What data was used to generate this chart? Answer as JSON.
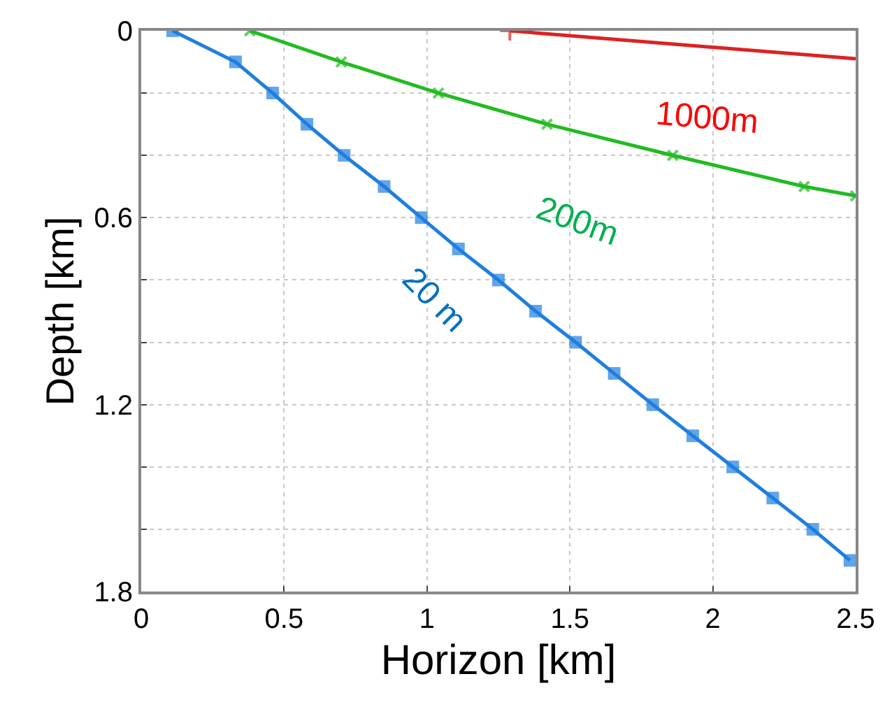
{
  "chart_data": {
    "type": "line",
    "xlabel": "Horizon [km]",
    "ylabel": "Depth [km]",
    "xlim": [
      0,
      2.5
    ],
    "ylim": [
      1.8,
      0
    ],
    "xticks": [
      0,
      0.5,
      1,
      1.5,
      2,
      2.5
    ],
    "yticks": [
      0,
      {
        "value": 0.2,
        "label": null
      },
      {
        "value": 0.4,
        "label": null
      },
      0.6,
      {
        "value": 0.8,
        "label": null
      },
      {
        "value": 1.0,
        "label": null
      },
      1.2,
      {
        "value": 1.4,
        "label": null
      },
      {
        "value": 1.6,
        "label": null
      },
      1.8
    ],
    "grid": true,
    "line_style": "solid",
    "series": [
      {
        "color": "#1f7fe0",
        "marker": "square",
        "x": [
          0.11,
          0.33,
          0.46,
          0.58,
          0.71,
          0.85,
          0.98,
          1.11,
          1.25,
          1.38,
          1.52,
          1.655,
          1.79,
          1.93,
          2.07,
          2.21,
          2.35,
          2.48
        ],
        "values": [
          0,
          0.1,
          0.2,
          0.3,
          0.4,
          0.5,
          0.6,
          0.7,
          0.8,
          0.9,
          1.0,
          1.1,
          1.2,
          1.3,
          1.4,
          1.5,
          1.6,
          1.7
        ]
      },
      {
        "color": "#22bb22",
        "marker": "cross",
        "x": [
          0.38,
          0.7,
          1.04,
          1.42,
          1.86,
          2.32,
          2.5
        ],
        "values": [
          0,
          0.1,
          0.2,
          0.3,
          0.4,
          0.5,
          0.53
        ]
      },
      {
        "color": "#dd2222",
        "marker": "cross",
        "x": [
          1.29,
          2.5
        ],
        "values": [
          0,
          0.09
        ]
      }
    ],
    "annotations": [
      "20 m",
      "200m",
      "1000m"
    ]
  }
}
